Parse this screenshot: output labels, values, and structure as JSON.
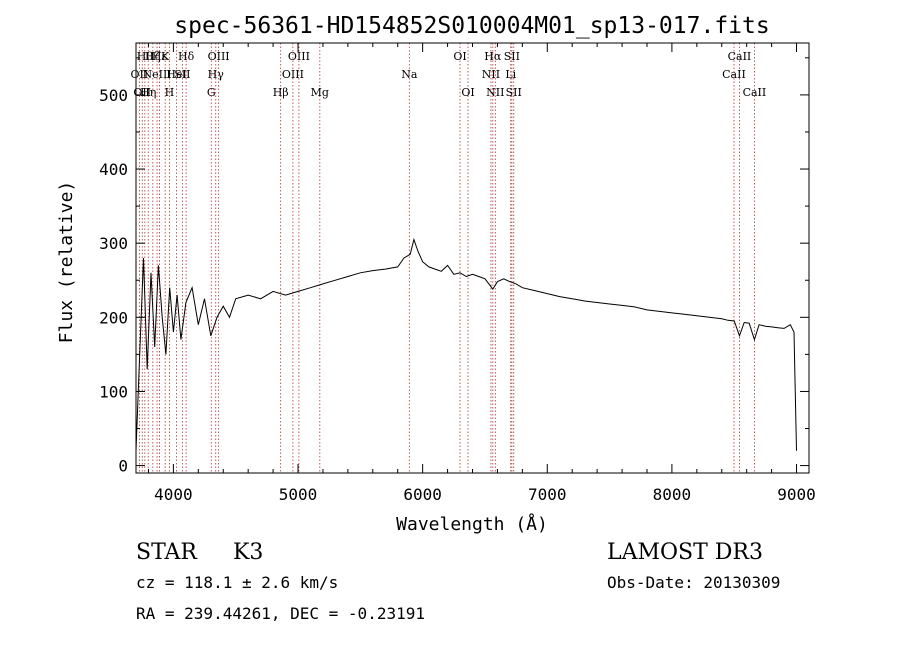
{
  "chart_data": {
    "type": "line",
    "title": "spec-56361-HD154852S010004M01_sp13-017.fits",
    "xlabel": "Wavelength (Å)",
    "ylabel": "Flux (relative)",
    "xlim": [
      3700,
      9100
    ],
    "ylim": [
      -10,
      570
    ],
    "xticks": [
      4000,
      5000,
      6000,
      7000,
      8000,
      9000
    ],
    "yticks": [
      0,
      100,
      200,
      300,
      400,
      500
    ],
    "grid": false,
    "series": [
      {
        "name": "spectrum",
        "x": [
          3700,
          3730,
          3760,
          3790,
          3820,
          3850,
          3880,
          3910,
          3940,
          3970,
          4000,
          4030,
          4060,
          4100,
          4150,
          4200,
          4250,
          4300,
          4350,
          4400,
          4450,
          4500,
          4600,
          4700,
          4800,
          4900,
          5000,
          5100,
          5200,
          5300,
          5400,
          5500,
          5600,
          5700,
          5800,
          5850,
          5900,
          5930,
          5960,
          6000,
          6050,
          6100,
          6150,
          6200,
          6250,
          6300,
          6350,
          6400,
          6450,
          6500,
          6563,
          6600,
          6650,
          6700,
          6750,
          6800,
          6900,
          7000,
          7100,
          7200,
          7300,
          7400,
          7500,
          7600,
          7700,
          7800,
          7900,
          8000,
          8100,
          8200,
          8300,
          8400,
          8450,
          8500,
          8542,
          8580,
          8620,
          8662,
          8700,
          8750,
          8800,
          8850,
          8900,
          8950,
          8980,
          9000
        ],
        "y": [
          20,
          150,
          280,
          130,
          260,
          160,
          270,
          200,
          150,
          240,
          180,
          230,
          170,
          220,
          240,
          190,
          225,
          175,
          200,
          215,
          200,
          225,
          230,
          225,
          235,
          230,
          235,
          240,
          245,
          250,
          255,
          260,
          263,
          265,
          268,
          280,
          285,
          305,
          290,
          275,
          268,
          265,
          262,
          270,
          258,
          260,
          255,
          258,
          255,
          252,
          238,
          248,
          252,
          248,
          245,
          240,
          236,
          232,
          228,
          225,
          222,
          220,
          218,
          216,
          214,
          210,
          208,
          206,
          204,
          202,
          200,
          198,
          196,
          195,
          175,
          193,
          192,
          170,
          190,
          188,
          187,
          186,
          185,
          190,
          180,
          20
        ]
      }
    ],
    "lines": [
      {
        "wl": 3727,
        "label": "OII",
        "row": 1
      },
      {
        "wl": 3750,
        "label": "OII",
        "row": 2
      },
      {
        "wl": 3771,
        "label": "Hθ",
        "row": 0
      },
      {
        "wl": 3798,
        "label": "Hη",
        "row": 2
      },
      {
        "wl": 3835,
        "label": "Hζ",
        "row": 0
      },
      {
        "wl": 3869,
        "label": "NeIII",
        "row": 1
      },
      {
        "wl": 3889,
        "label": "Hε",
        "row": 0
      },
      {
        "wl": 3934,
        "label": "K",
        "row": 0
      },
      {
        "wl": 3968,
        "label": "H",
        "row": 2
      },
      {
        "wl": 4026,
        "label": "HeI",
        "row": 1
      },
      {
        "wl": 4072,
        "label": "SII",
        "row": 1
      },
      {
        "wl": 4102,
        "label": "Hδ",
        "row": 0
      },
      {
        "wl": 4304,
        "label": "G",
        "row": 2
      },
      {
        "wl": 4340,
        "label": "Hγ",
        "row": 1
      },
      {
        "wl": 4363,
        "label": "OIII",
        "row": 0
      },
      {
        "wl": 4861,
        "label": "Hβ",
        "row": 2
      },
      {
        "wl": 4959,
        "label": "OIII",
        "row": 1
      },
      {
        "wl": 5007,
        "label": "OIII",
        "row": 0
      },
      {
        "wl": 5175,
        "label": "Mg",
        "row": 2
      },
      {
        "wl": 5893,
        "label": "Na",
        "row": 1
      },
      {
        "wl": 6300,
        "label": "OI",
        "row": 0
      },
      {
        "wl": 6364,
        "label": "OI",
        "row": 2
      },
      {
        "wl": 6548,
        "label": "NII",
        "row": 1
      },
      {
        "wl": 6563,
        "label": "Hα",
        "row": 0
      },
      {
        "wl": 6583,
        "label": "NII",
        "row": 2
      },
      {
        "wl": 6707,
        "label": "Li",
        "row": 1
      },
      {
        "wl": 6716,
        "label": "SII",
        "row": 0
      },
      {
        "wl": 6731,
        "label": "SII",
        "row": 2
      },
      {
        "wl": 8498,
        "label": "CaII",
        "row": 1
      },
      {
        "wl": 8542,
        "label": "CaII",
        "row": 0
      },
      {
        "wl": 8662,
        "label": "CaII",
        "row": 2
      }
    ]
  },
  "info": {
    "class_label": "STAR",
    "subclass": "K3",
    "survey": "LAMOST DR3",
    "cz": "cz = 118.1 ± 2.6 km/s",
    "obs_date": "Obs-Date: 20130309",
    "coords": "RA = 239.44261, DEC =  -0.23191"
  },
  "colors": {
    "line_marker": "#b03030",
    "spectrum": "#000000",
    "axes": "#000000"
  }
}
